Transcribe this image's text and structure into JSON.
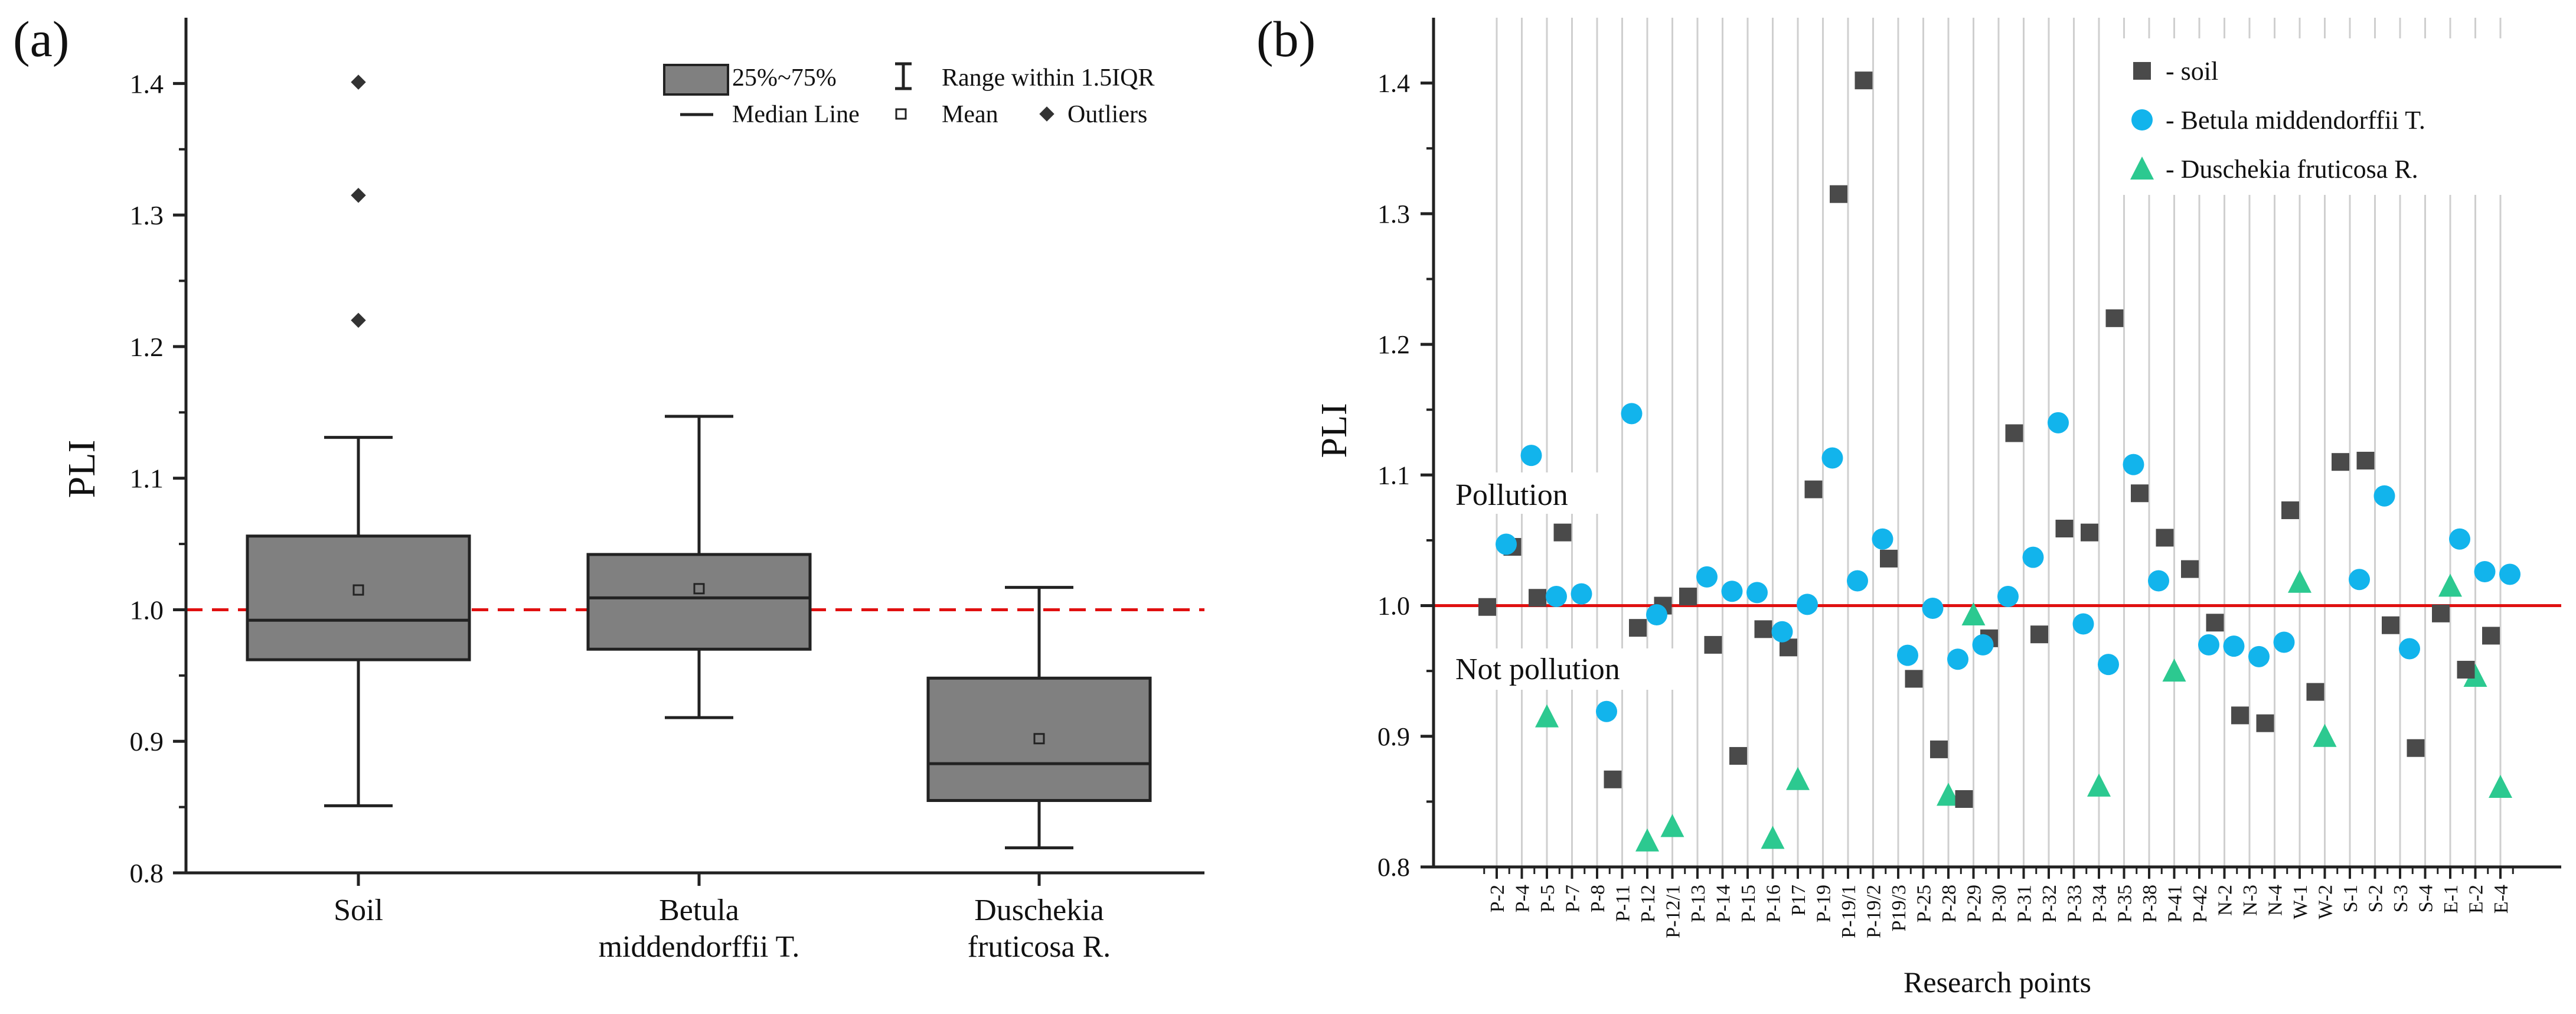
{
  "panel_a": {
    "label": "(a)",
    "legend": {
      "box": "25%~75%",
      "range": "Range within 1.5IQR",
      "median": "Median Line",
      "mean": "Mean",
      "outliers": "Outliers"
    }
  },
  "panel_b": {
    "label": "(b)",
    "pollution_label": "Pollution",
    "not_pollution_label": "Not pollution"
  },
  "colors": {
    "box_fill": "#808080",
    "soil": "#4a4a4a",
    "betula": "#12b4ec",
    "duschekia": "#2cc990",
    "threshold": "#e01010"
  },
  "chart_data": [
    {
      "type": "box",
      "title": "",
      "xlabel": "",
      "ylabel": "PLI",
      "ylim": [
        0.8,
        1.45
      ],
      "yticks": [
        "0.8",
        "0.9",
        "1.0",
        "1.1",
        "1.2",
        "1.3",
        "1.4"
      ],
      "threshold": 1.0,
      "categories": [
        {
          "name": "Soil",
          "lines": [
            "Soil"
          ],
          "q1": 0.962,
          "median": 0.992,
          "q3": 1.056,
          "mean": 1.015,
          "whisker_low": 0.851,
          "whisker_high": 1.131,
          "outliers": [
            1.22,
            1.315,
            1.401
          ]
        },
        {
          "name": "Betula middendorffii T.",
          "lines": [
            "Betula",
            "middendorffii T."
          ],
          "q1": 0.97,
          "median": 1.009,
          "q3": 1.042,
          "mean": 1.016,
          "whisker_low": 0.918,
          "whisker_high": 1.147,
          "outliers": []
        },
        {
          "name": "Duschekia fruticosa R.",
          "lines": [
            "Duschekia",
            "fruticosa R."
          ],
          "q1": 0.855,
          "median": 0.883,
          "q3": 0.948,
          "mean": 0.902,
          "whisker_low": 0.819,
          "whisker_high": 1.017,
          "outliers": []
        }
      ]
    },
    {
      "type": "scatter",
      "title": "",
      "xlabel": "Research points",
      "ylabel": "PLI",
      "ylim": [
        0.8,
        1.45
      ],
      "yticks": [
        "0.8",
        "0.9",
        "1.0",
        "1.1",
        "1.2",
        "1.3",
        "1.4"
      ],
      "threshold": 1.0,
      "categories": [
        "P-2",
        "P-4",
        "P-5",
        "P-7",
        "P-8",
        "P-11",
        "P-12",
        "P-12/1",
        "P-13",
        "P-14",
        "P-15",
        "P-16",
        "P17",
        "P-19",
        "P-19/1",
        "P-19/2",
        "P19/3",
        "P-25",
        "P-28",
        "P-29",
        "P-30",
        "P-31",
        "P-32",
        "P-33",
        "P-34",
        "P-35",
        "P-38",
        "P-41",
        "P-42",
        "N-2",
        "N-3",
        "N-4",
        "W-1",
        "W-2",
        "S-1",
        "S-2",
        "S-3",
        "S-4",
        "E-1",
        "E-2",
        "E-4"
      ],
      "series": [
        {
          "name": "- soil",
          "marker": "square",
          "values": [
            0.999,
            1.045,
            1.006,
            1.056,
            null,
            0.867,
            0.983,
            1.0,
            1.007,
            0.97,
            0.885,
            0.982,
            0.968,
            1.089,
            1.315,
            1.402,
            1.036,
            0.944,
            0.89,
            0.852,
            0.975,
            1.132,
            0.978,
            1.059,
            1.056,
            1.22,
            1.086,
            1.052,
            1.028,
            0.987,
            0.916,
            0.91,
            1.073,
            0.934,
            1.11,
            1.111,
            0.985,
            0.891,
            0.994,
            0.951,
            0.977
          ]
        },
        {
          "name": "- Betula middendorffii T.",
          "marker": "circle",
          "values": [
            1.047,
            1.115,
            1.007,
            1.009,
            0.919,
            1.147,
            0.993,
            null,
            1.022,
            1.011,
            1.01,
            0.98,
            1.001,
            1.113,
            1.019,
            1.051,
            0.962,
            0.998,
            0.959,
            0.97,
            1.007,
            1.037,
            1.14,
            0.986,
            0.955,
            1.108,
            1.019,
            null,
            0.97,
            0.969,
            0.961,
            0.972,
            null,
            null,
            1.02,
            1.084,
            0.967,
            null,
            1.051,
            1.026,
            1.024
          ]
        },
        {
          "name": "- Duschekia fruticosa R.",
          "marker": "triangle",
          "values": [
            null,
            null,
            0.915,
            null,
            null,
            null,
            0.82,
            0.831,
            null,
            null,
            null,
            0.822,
            0.867,
            null,
            null,
            null,
            null,
            null,
            0.855,
            0.993,
            null,
            null,
            null,
            null,
            0.862,
            null,
            null,
            0.95,
            null,
            null,
            null,
            null,
            1.018,
            0.9,
            null,
            null,
            null,
            null,
            1.015,
            0.946,
            0.861
          ]
        }
      ]
    }
  ]
}
